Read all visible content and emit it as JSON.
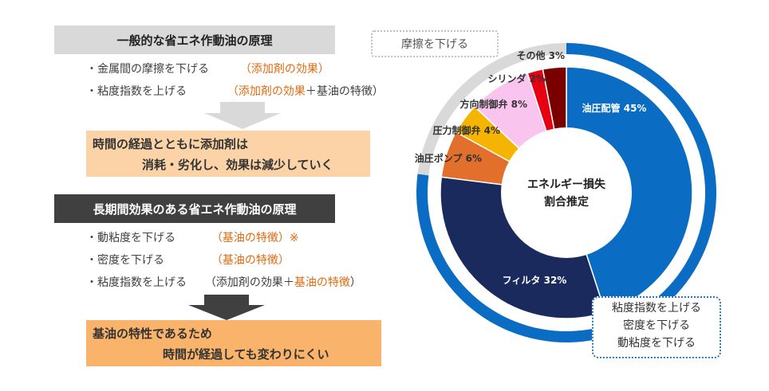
{
  "left": {
    "section1_title": "一般的な省エネ作動油の原理",
    "section1_lines": [
      {
        "text": "・金属間の摩擦を下げる",
        "note_orange": "（添加剤の効果）",
        "note_plain": ""
      },
      {
        "text": "・粘度指数を上げる",
        "note_orange_open": "（",
        "note_orange": "添加剤の効果",
        "note_plain": "＋基油の特徴）"
      }
    ],
    "box1_line1": "時間の経過とともに添加剤は",
    "box1_line2": "消耗・劣化し、効果は減少していく",
    "section2_title": "長期間効果のある省エネ作動油の原理",
    "section2_lines": [
      {
        "text": "・動粘度を下げる",
        "note_orange": "（基油の特徴）※"
      },
      {
        "text": "・密度を下げる",
        "note_orange": "（基油の特徴）"
      },
      {
        "text": "・粘度指数を上げる",
        "note_plain": "（添加剤の効果＋",
        "note_orange": "基油の特徴",
        "note_close": "）"
      }
    ],
    "box2_line1": "基油の特性であるため",
    "box2_line2": "時間が経過しても変わりにくい"
  },
  "callouts": {
    "gray": "摩擦を下げる",
    "blue": [
      "粘度指数を上げる",
      "密度を下げる",
      "動粘度を下げる"
    ]
  },
  "chart_data": {
    "type": "pie",
    "title": "エネルギー損失割合推定",
    "center_label": [
      "エネルギー損失",
      "割合推定"
    ],
    "slices": [
      {
        "name": "油圧配管",
        "value": 45,
        "label": "油圧配管 45%",
        "color": "#0b6cc4"
      },
      {
        "name": "フィルタ",
        "value": 32,
        "label": "フィルタ 32%",
        "color": "#1a2a5c"
      },
      {
        "name": "油圧ポンプ",
        "value": 6,
        "label": "油圧ポンプ 6%",
        "color": "#e36f2c"
      },
      {
        "name": "圧力制御弁",
        "value": 4,
        "label": "圧力制御弁 4%",
        "color": "#f5b400"
      },
      {
        "name": "方向制御弁",
        "value": 8,
        "label": "方向制御弁 8%",
        "color": "#f9c4ee"
      },
      {
        "name": "シリンダ",
        "value": 2,
        "label": "シリンダ 2%",
        "color": "#e60012"
      },
      {
        "name": "その他",
        "value": 3,
        "label": "その他 3%",
        "color": "#7a0000"
      }
    ],
    "outer_ring": {
      "blue_share": 77,
      "gray_share": 23,
      "blue_color": "#0b6cc4",
      "gray_color": "#d9d9d9"
    }
  }
}
